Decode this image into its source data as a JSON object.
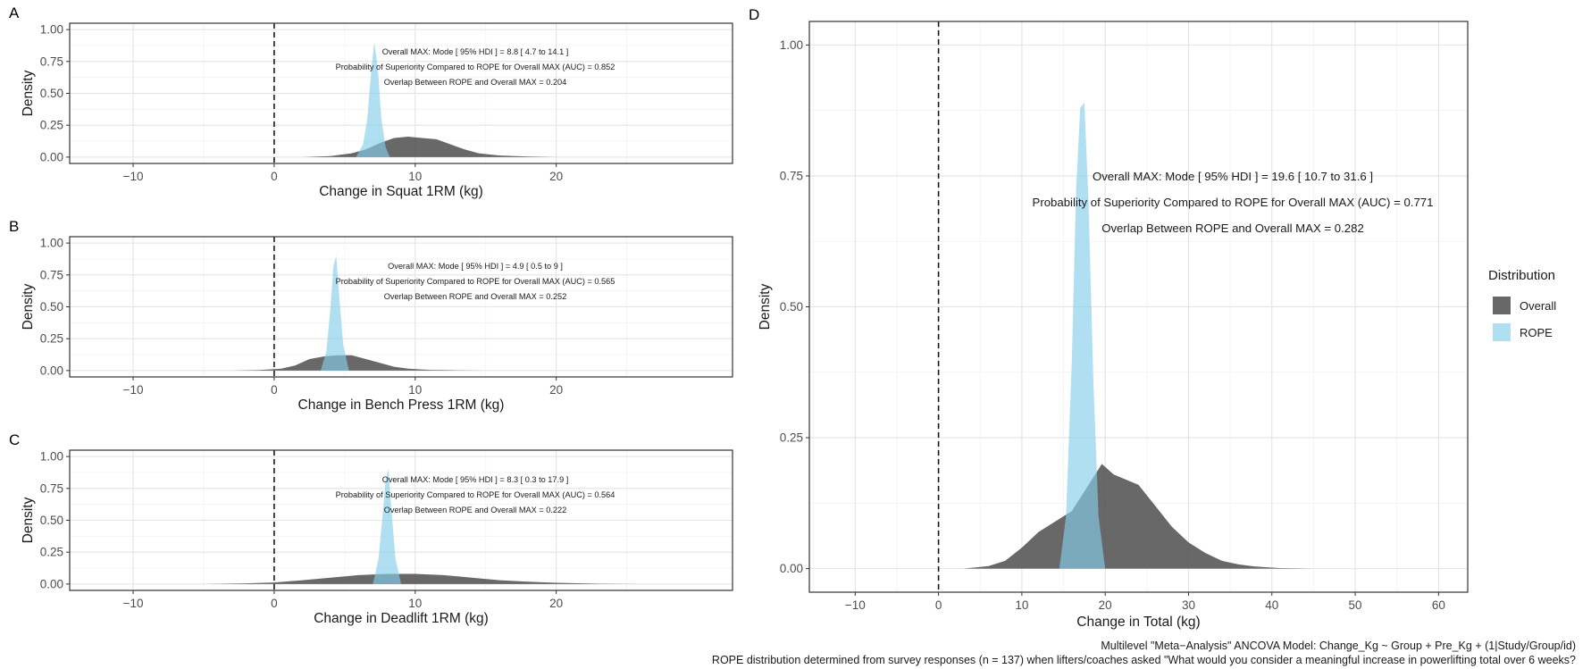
{
  "colors": {
    "overall": "#4d4d4d",
    "rope": "#87ceeb",
    "background": "#ffffff"
  },
  "legend": {
    "title": "Distribution",
    "items": [
      {
        "label": "Overall",
        "color": "#4d4d4d",
        "opacity": 0.85
      },
      {
        "label": "ROPE",
        "color": "#87ceeb",
        "opacity": 0.65
      }
    ]
  },
  "caption": {
    "line1": "Multilevel \"Meta−Analysis\" ANCOVA Model: Change_Kg ~ Group + Pre_Kg + (1|Study/Group/id)",
    "line2": "ROPE distribution determined from survey responses (n = 137) when lifters/coaches asked \"What would you consider a meaningful increase in powerlifting total over 6 weeks?"
  },
  "chart_data": [
    {
      "panel": "A",
      "type": "area",
      "xlabel": "Change in Squat 1RM (kg)",
      "ylabel": "Density",
      "xlim": [
        -14.5,
        32.5
      ],
      "ylim": [
        -0.05,
        1.05
      ],
      "x_ticks": [
        -10,
        0,
        10,
        20
      ],
      "x_tick_labels": [
        "−10",
        "0",
        "10",
        "20"
      ],
      "y_ticks": [
        0,
        0.25,
        0.5,
        0.75,
        1.0
      ],
      "y_tick_labels": [
        "0.00",
        "0.25",
        "0.50",
        "0.75",
        "1.00"
      ],
      "grid": true,
      "reference_line_x": 0,
      "annotations": [
        "Overall MAX: Mode [ 95% HDI ] =  8.8  [ 4.7  to  14.1 ]",
        "Probability of Superiority Compared to ROPE for Overall MAX (AUC) =  0.852",
        "Overlap Between ROPE and Overall MAX =  0.204"
      ],
      "series": [
        {
          "name": "Overall",
          "x": [
            2.0,
            4.0,
            5.5,
            6.5,
            7.5,
            8.5,
            9.5,
            10.5,
            11.5,
            12.5,
            13.5,
            14.5,
            16.0,
            18.0,
            20.0
          ],
          "y": [
            0.0,
            0.008,
            0.03,
            0.06,
            0.11,
            0.15,
            0.16,
            0.15,
            0.14,
            0.1,
            0.06,
            0.03,
            0.012,
            0.004,
            0.0
          ]
        },
        {
          "name": "ROPE",
          "x": [
            5.8,
            6.3,
            6.6,
            6.9,
            7.1,
            7.35,
            7.6,
            7.9,
            8.2
          ],
          "y": [
            0.0,
            0.1,
            0.3,
            0.7,
            0.9,
            0.7,
            0.3,
            0.08,
            0.0
          ]
        }
      ]
    },
    {
      "panel": "B",
      "type": "area",
      "xlabel": "Change in Bench Press 1RM (kg)",
      "ylabel": "Density",
      "xlim": [
        -14.5,
        32.5
      ],
      "ylim": [
        -0.05,
        1.05
      ],
      "x_ticks": [
        -10,
        0,
        10,
        20
      ],
      "x_tick_labels": [
        "−10",
        "0",
        "10",
        "20"
      ],
      "y_ticks": [
        0,
        0.25,
        0.5,
        0.75,
        1.0
      ],
      "y_tick_labels": [
        "0.00",
        "0.25",
        "0.50",
        "0.75",
        "1.00"
      ],
      "grid": true,
      "reference_line_x": 0,
      "annotations": [
        "Overall MAX: Mode [ 95% HDI ] =  4.9  [ 0.5  to  9 ]",
        "Probability of Superiority Compared to ROPE for Overall MAX (AUC) =  0.565",
        "Overlap Between ROPE and Overall MAX =  0.252"
      ],
      "series": [
        {
          "name": "Overall",
          "x": [
            -3.0,
            -1.0,
            0.5,
            1.5,
            2.5,
            3.5,
            4.5,
            5.5,
            6.5,
            7.5,
            8.5,
            9.5,
            11.0,
            13.0,
            15.0
          ],
          "y": [
            0.0,
            0.004,
            0.015,
            0.04,
            0.09,
            0.11,
            0.12,
            0.12,
            0.09,
            0.06,
            0.03,
            0.015,
            0.005,
            0.002,
            0.0
          ]
        },
        {
          "name": "ROPE",
          "x": [
            3.3,
            3.7,
            4.0,
            4.2,
            4.4,
            4.6,
            4.9,
            5.3
          ],
          "y": [
            0.0,
            0.15,
            0.5,
            0.82,
            0.9,
            0.6,
            0.2,
            0.0
          ]
        }
      ]
    },
    {
      "panel": "C",
      "type": "area",
      "xlabel": "Change in Deadlift 1RM (kg)",
      "ylabel": "Density",
      "xlim": [
        -14.5,
        32.5
      ],
      "ylim": [
        -0.05,
        1.05
      ],
      "x_ticks": [
        -10,
        0,
        10,
        20
      ],
      "x_tick_labels": [
        "−10",
        "0",
        "10",
        "20"
      ],
      "y_ticks": [
        0,
        0.25,
        0.5,
        0.75,
        1.0
      ],
      "y_tick_labels": [
        "0.00",
        "0.25",
        "0.50",
        "0.75",
        "1.00"
      ],
      "grid": true,
      "reference_line_x": 0,
      "annotations": [
        "Overall MAX: Mode [ 95% HDI ] =  8.3  [ 0.3  to  17.9 ]",
        "Probability of Superiority Compared to ROPE for Overall MAX (AUC) =  0.564",
        "Overlap Between ROPE and Overall MAX =  0.222"
      ],
      "series": [
        {
          "name": "Overall",
          "x": [
            -5.0,
            -2.0,
            0.0,
            2.0,
            4.0,
            6.0,
            8.0,
            10.0,
            12.0,
            14.0,
            16.0,
            18.0,
            20.0,
            23.0,
            26.0
          ],
          "y": [
            0.0,
            0.005,
            0.012,
            0.03,
            0.05,
            0.07,
            0.08,
            0.08,
            0.07,
            0.05,
            0.03,
            0.018,
            0.01,
            0.003,
            0.0
          ]
        },
        {
          "name": "ROPE",
          "x": [
            7.0,
            7.4,
            7.7,
            7.9,
            8.1,
            8.3,
            8.6,
            9.0
          ],
          "y": [
            0.0,
            0.2,
            0.55,
            0.82,
            0.9,
            0.6,
            0.2,
            0.0
          ]
        }
      ]
    },
    {
      "panel": "D",
      "type": "area",
      "xlabel": "Change in Total (kg)",
      "ylabel": "Density",
      "xlim": [
        -15.5,
        63.5
      ],
      "ylim": [
        -0.045,
        1.045
      ],
      "x_ticks": [
        -10,
        0,
        10,
        20,
        30,
        40,
        50,
        60
      ],
      "x_tick_labels": [
        "−10",
        "0",
        "10",
        "20",
        "30",
        "40",
        "50",
        "60"
      ],
      "y_ticks": [
        0,
        0.25,
        0.5,
        0.75,
        1.0
      ],
      "y_tick_labels": [
        "0.00",
        "0.25",
        "0.50",
        "0.75",
        "1.00"
      ],
      "grid": true,
      "reference_line_x": 0,
      "annotations": [
        "Overall MAX: Mode [ 95% HDI ] =  19.6  [ 10.7  to  31.6 ]",
        "Probability of Superiority Compared to ROPE for Overall MAX (AUC) =  0.771",
        "Overlap Between ROPE and Overall MAX =  0.282"
      ],
      "series": [
        {
          "name": "Overall",
          "x": [
            3.0,
            6.0,
            8.0,
            10.0,
            12.0,
            14.0,
            16.0,
            18.0,
            19.6,
            21.0,
            22.5,
            24.0,
            26.0,
            28.0,
            30.0,
            32.0,
            34.0,
            36.0,
            38.0,
            41.0,
            45.0
          ],
          "y": [
            0.0,
            0.005,
            0.015,
            0.04,
            0.07,
            0.09,
            0.11,
            0.16,
            0.2,
            0.18,
            0.17,
            0.16,
            0.12,
            0.08,
            0.05,
            0.03,
            0.015,
            0.008,
            0.004,
            0.001,
            0.0
          ]
        },
        {
          "name": "ROPE",
          "x": [
            14.5,
            15.3,
            16.0,
            16.5,
            17.0,
            17.5,
            18.0,
            18.6,
            19.2,
            20.0
          ],
          "y": [
            0.0,
            0.1,
            0.4,
            0.72,
            0.88,
            0.89,
            0.7,
            0.35,
            0.1,
            0.0
          ]
        }
      ]
    }
  ]
}
